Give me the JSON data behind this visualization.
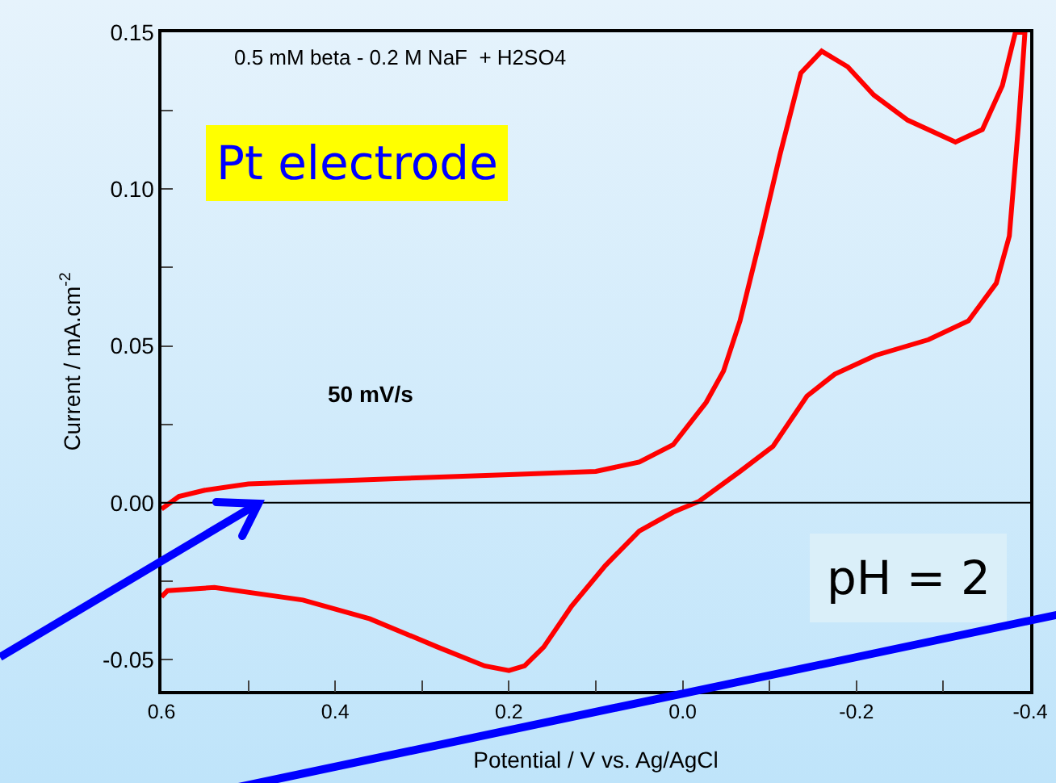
{
  "chart_data": {
    "type": "line",
    "xlabel": "Potential / V vs. Ag/AgCl",
    "ylabel": "Current / mA.cm$^{-2}$",
    "annotations": [
      "0.5 mM beta - 0.2 M NaF  + H2SO4",
      "Pt electrode",
      "50 mV/s",
      "pH = 2"
    ],
    "series": [
      {
        "color": "#ff0000",
        "x": [
          0.6,
          0.58,
          0.55,
          0.5,
          0.4,
          0.3,
          0.2,
          0.1,
          0.05,
          0.011,
          -0.027,
          -0.047,
          -0.066,
          -0.09,
          -0.112,
          -0.136,
          -0.16,
          -0.19,
          -0.22,
          -0.259,
          -0.314,
          -0.345,
          -0.368,
          -0.383,
          -0.392,
          -0.394,
          -0.387,
          -0.376,
          -0.361,
          -0.329,
          -0.283,
          -0.222,
          -0.175,
          -0.143,
          -0.104,
          -0.066,
          -0.019,
          0.011,
          0.05,
          0.089,
          0.128,
          0.16,
          0.182,
          0.2,
          0.228,
          0.282,
          0.36,
          0.437,
          0.539,
          0.593,
          0.6
        ],
        "values": [
          -0.002,
          0.002,
          0.004,
          0.006,
          0.007,
          0.008,
          0.009,
          0.01,
          0.013,
          0.0185,
          0.032,
          0.042,
          0.058,
          0.085,
          0.111,
          0.137,
          0.144,
          0.139,
          0.13,
          0.122,
          0.115,
          0.119,
          0.133,
          0.15,
          0.15,
          0.15,
          0.122,
          0.085,
          0.07,
          0.058,
          0.052,
          0.047,
          0.041,
          0.034,
          0.018,
          0.01,
          0.0005,
          -0.003,
          -0.009,
          -0.02,
          -0.033,
          -0.046,
          -0.052,
          -0.0535,
          -0.052,
          -0.046,
          -0.037,
          -0.031,
          -0.027,
          -0.028,
          -0.03
        ]
      }
    ],
    "xlim": [
      0.6,
      -0.4
    ],
    "xticks": [
      0.6,
      {
        "value": 0.5,
        "label": null
      },
      0.4,
      {
        "value": 0.3,
        "label": null
      },
      0.2,
      {
        "value": 0.1,
        "label": null
      },
      {
        "value": 0,
        "label": "0.0"
      },
      {
        "value": -0.1,
        "label": null
      },
      -0.2,
      {
        "value": -0.3,
        "label": null
      },
      -0.4
    ],
    "ylim": [
      -0.06,
      0.15
    ],
    "yticks": [
      -0.05,
      {
        "value": -0.025,
        "label": null
      },
      {
        "value": 0,
        "label": "0.00"
      },
      {
        "value": 0.025,
        "label": null
      },
      0.05,
      {
        "value": 0.075,
        "label": null
      },
      {
        "value": 0.1,
        "label": "0.10"
      },
      {
        "value": 0.125,
        "label": null
      },
      0.15
    ],
    "ref_lines": [
      {
        "axis": "y",
        "value": 0,
        "color": "#000000"
      }
    ],
    "line_style": "solid",
    "marker": "none"
  }
}
